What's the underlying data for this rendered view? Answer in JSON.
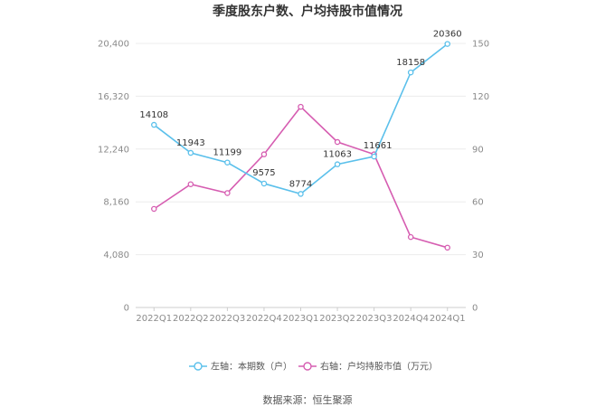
{
  "chart_data": {
    "type": "line",
    "title": "季度股东户数、户均持股市值情况",
    "categories": [
      "2022Q1",
      "2022Q2",
      "2022Q3",
      "2022Q4",
      "2023Q1",
      "2023Q2",
      "2023Q3",
      "2024Q4",
      "2024Q1"
    ],
    "series": [
      {
        "name": "左轴：本期数（户）",
        "axis": "left",
        "color": "#5bc0eb",
        "values": [
          14108,
          11943,
          11199,
          9575,
          8774,
          11063,
          11661,
          18158,
          20360
        ],
        "labels": [
          "14108",
          "11943",
          "11199",
          "9575",
          "8774",
          "11063",
          "11661",
          "18158",
          "20360"
        ]
      },
      {
        "name": "右轴：户均持股市值（万元）",
        "axis": "right",
        "color": "#d65db1",
        "values": [
          56,
          70,
          65,
          87,
          114,
          94,
          87,
          40,
          34
        ]
      }
    ],
    "left_axis": {
      "min": 0,
      "max": 20400,
      "ticks": [
        0,
        4080,
        8160,
        12240,
        16320,
        20400
      ],
      "tick_labels": [
        "0",
        "4,080",
        "8,160",
        "12,240",
        "16,320",
        "20,400"
      ]
    },
    "right_axis": {
      "min": 0,
      "max": 150,
      "ticks": [
        0,
        30,
        60,
        90,
        120,
        150
      ],
      "tick_labels": [
        "0",
        "30",
        "60",
        "90",
        "120",
        "150"
      ]
    },
    "grid": true,
    "legend_position": "bottom"
  },
  "source": "数据来源：恒生聚源"
}
